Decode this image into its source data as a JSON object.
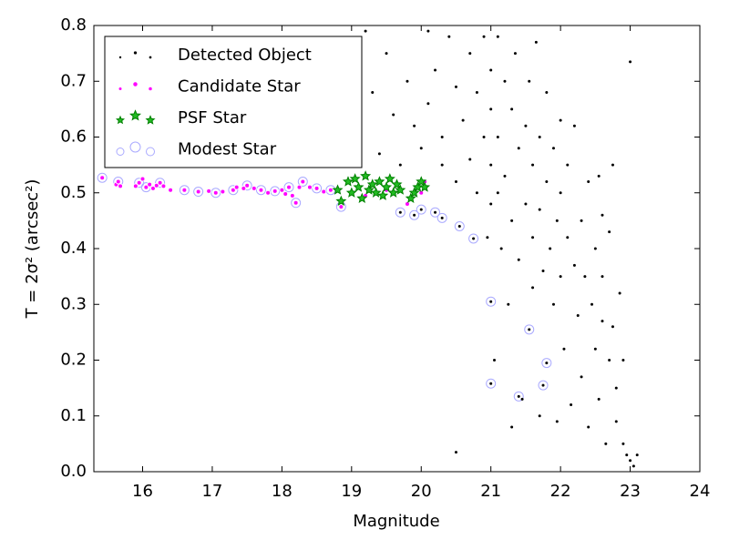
{
  "chart_data": {
    "type": "scatter",
    "xlabel": "Magnitude",
    "ylabel": "T = 2σ² (arcsec²)",
    "xlim": [
      15.3,
      24
    ],
    "ylim": [
      0,
      0.8
    ],
    "xticks": [
      16,
      17,
      18,
      19,
      20,
      21,
      22,
      23,
      24
    ],
    "yticks": [
      {
        "value": 0,
        "label": "0.0"
      },
      0.1,
      0.2,
      0.3,
      0.4,
      0.5,
      0.6,
      0.7,
      0.8
    ],
    "legend": "upper left",
    "series": [
      {
        "name": "Detected Object",
        "color": "#000000",
        "marker": "dot",
        "x": [
          19.2,
          19.5,
          19.6,
          19.7,
          19.8,
          19.9,
          20.0,
          19.1,
          19.3,
          19.4,
          20.1,
          20.1,
          20.2,
          20.3,
          20.3,
          20.4,
          20.5,
          20.5,
          20.6,
          20.7,
          20.7,
          20.8,
          20.8,
          20.9,
          20.9,
          21.0,
          21.0,
          21.0,
          21.0,
          20.95,
          20.5,
          20.2,
          20.3,
          20.55,
          20.75,
          19.7,
          19.9,
          20.0,
          21.1,
          21.1,
          21.1,
          21.15,
          21.2,
          21.2,
          21.25,
          21.3,
          21.3,
          21.3,
          21.35,
          21.4,
          21.4,
          21.4,
          21.45,
          21.5,
          21.5,
          21.55,
          21.55,
          21.6,
          21.6,
          21.6,
          21.65,
          21.7,
          21.7,
          21.7,
          21.75,
          21.75,
          21.8,
          21.8,
          21.8,
          21.85,
          21.9,
          21.9,
          21.95,
          21.95,
          21.0,
          21.0,
          21.05,
          22.0,
          22.0,
          22.0,
          22.05,
          22.1,
          22.1,
          22.15,
          22.2,
          22.2,
          22.25,
          22.3,
          22.3,
          22.35,
          22.4,
          22.4,
          22.45,
          22.5,
          22.5,
          22.55,
          22.6,
          22.6,
          22.65,
          22.7,
          22.7,
          22.75,
          22.75,
          22.8,
          22.8,
          22.85,
          22.9,
          22.9,
          22.95,
          23.0,
          23.05,
          23.1,
          23.0,
          22.55,
          22.6
        ],
        "values": [
          0.79,
          0.75,
          0.64,
          0.55,
          0.7,
          0.62,
          0.58,
          0.6,
          0.68,
          0.57,
          0.79,
          0.66,
          0.72,
          0.6,
          0.55,
          0.78,
          0.69,
          0.52,
          0.63,
          0.75,
          0.56,
          0.5,
          0.68,
          0.6,
          0.78,
          0.72,
          0.65,
          0.55,
          0.48,
          0.42,
          0.035,
          0.465,
          0.455,
          0.44,
          0.418,
          0.465,
          0.46,
          0.47,
          0.78,
          0.6,
          0.5,
          0.4,
          0.7,
          0.53,
          0.3,
          0.65,
          0.45,
          0.08,
          0.75,
          0.58,
          0.38,
          0.135,
          0.13,
          0.62,
          0.48,
          0.255,
          0.7,
          0.55,
          0.42,
          0.33,
          0.77,
          0.6,
          0.47,
          0.1,
          0.155,
          0.36,
          0.195,
          0.52,
          0.68,
          0.4,
          0.58,
          0.3,
          0.45,
          0.09,
          0.305,
          0.158,
          0.2,
          0.63,
          0.5,
          0.35,
          0.22,
          0.42,
          0.55,
          0.12,
          0.37,
          0.62,
          0.28,
          0.45,
          0.17,
          0.35,
          0.52,
          0.08,
          0.3,
          0.4,
          0.22,
          0.13,
          0.35,
          0.27,
          0.05,
          0.43,
          0.2,
          0.55,
          0.26,
          0.15,
          0.09,
          0.32,
          0.05,
          0.2,
          0.03,
          0.02,
          0.01,
          0.03,
          0.735,
          0.53,
          0.46
        ]
      },
      {
        "name": "Candidate Star",
        "color": "#ff00ff",
        "marker": "circle",
        "x": [
          15.42,
          15.62,
          15.65,
          15.68,
          15.9,
          15.95,
          16.0,
          16.05,
          16.1,
          16.15,
          16.2,
          16.25,
          16.3,
          16.4,
          16.6,
          16.8,
          16.95,
          17.05,
          17.15,
          17.3,
          17.35,
          17.45,
          17.5,
          17.6,
          17.7,
          17.8,
          17.9,
          18.0,
          18.05,
          18.1,
          18.15,
          18.2,
          18.25,
          18.3,
          18.4,
          18.5,
          18.6,
          18.7,
          18.85,
          19.2,
          19.5,
          19.8,
          20.0,
          20.05
        ],
        "values": [
          0.527,
          0.515,
          0.52,
          0.512,
          0.512,
          0.518,
          0.525,
          0.51,
          0.515,
          0.508,
          0.513,
          0.518,
          0.512,
          0.505,
          0.505,
          0.502,
          0.503,
          0.5,
          0.502,
          0.505,
          0.51,
          0.508,
          0.513,
          0.508,
          0.505,
          0.5,
          0.503,
          0.505,
          0.498,
          0.51,
          0.495,
          0.482,
          0.51,
          0.52,
          0.51,
          0.508,
          0.502,
          0.505,
          0.475,
          0.495,
          0.505,
          0.48,
          0.5,
          0.52
        ]
      },
      {
        "name": "PSF Star",
        "color": "#008000",
        "marker": "star",
        "x": [
          18.8,
          18.85,
          18.95,
          19.0,
          19.05,
          19.1,
          19.15,
          19.2,
          19.25,
          19.3,
          19.35,
          19.4,
          19.45,
          19.5,
          19.55,
          19.6,
          19.65,
          19.7,
          19.85,
          19.9,
          19.95,
          20.0,
          20.05
        ],
        "values": [
          0.505,
          0.485,
          0.52,
          0.5,
          0.525,
          0.51,
          0.49,
          0.53,
          0.505,
          0.515,
          0.5,
          0.52,
          0.495,
          0.51,
          0.525,
          0.5,
          0.515,
          0.505,
          0.49,
          0.5,
          0.51,
          0.52,
          0.51
        ]
      },
      {
        "name": "Modest Star",
        "color": "#aaaaff",
        "marker": "ring",
        "x": [
          15.42,
          15.65,
          15.95,
          16.05,
          16.25,
          16.6,
          16.8,
          17.05,
          17.3,
          17.5,
          17.7,
          17.9,
          18.1,
          18.2,
          18.3,
          18.5,
          18.7,
          18.85,
          19.7,
          19.9,
          20.0,
          20.2,
          20.3,
          20.55,
          20.75,
          21.0,
          21.0,
          21.4,
          21.55,
          21.75,
          21.8
        ],
        "values": [
          0.527,
          0.52,
          0.518,
          0.51,
          0.518,
          0.505,
          0.502,
          0.5,
          0.505,
          0.513,
          0.505,
          0.503,
          0.51,
          0.482,
          0.52,
          0.508,
          0.505,
          0.475,
          0.465,
          0.46,
          0.47,
          0.465,
          0.455,
          0.44,
          0.418,
          0.305,
          0.158,
          0.135,
          0.255,
          0.155,
          0.195
        ]
      }
    ]
  }
}
